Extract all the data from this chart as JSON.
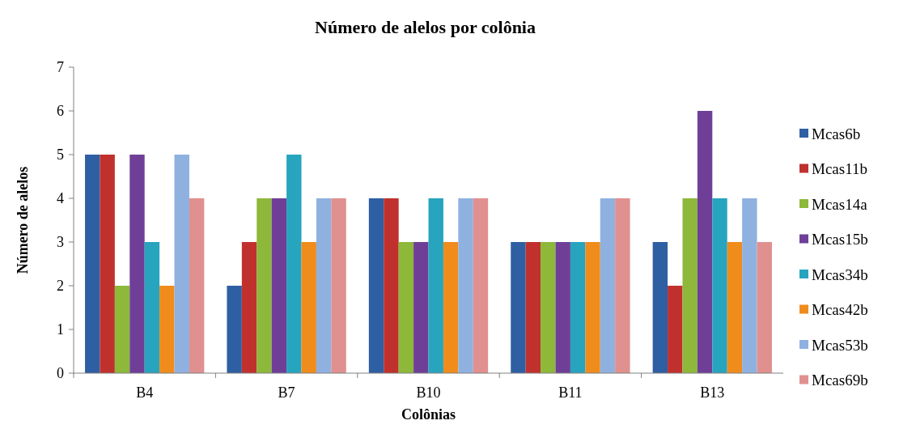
{
  "chart_data": {
    "type": "bar",
    "title": "Número de alelos por colônia",
    "xlabel": "Colônias",
    "ylabel": "Número de alelos",
    "categories": [
      "B4",
      "B7",
      "B10",
      "B11",
      "B13"
    ],
    "series": [
      {
        "name": "Mcas6b",
        "color": "#2e5fa3",
        "values": [
          5,
          2,
          4,
          3,
          3
        ]
      },
      {
        "name": "Mcas11b",
        "color": "#c0312e",
        "values": [
          5,
          3,
          4,
          3,
          2
        ]
      },
      {
        "name": "Mcas14a",
        "color": "#8db83a",
        "values": [
          2,
          4,
          3,
          3,
          4
        ]
      },
      {
        "name": "Mcas15b",
        "color": "#6f3f98",
        "values": [
          5,
          4,
          3,
          3,
          6
        ]
      },
      {
        "name": "Mcas34b",
        "color": "#27a4be",
        "values": [
          3,
          5,
          4,
          3,
          4
        ]
      },
      {
        "name": "Mcas42b",
        "color": "#f08c1c",
        "values": [
          2,
          3,
          3,
          3,
          3
        ]
      },
      {
        "name": "Mcas53b",
        "color": "#8fb1e0",
        "values": [
          5,
          4,
          4,
          4,
          4
        ]
      },
      {
        "name": "Mcas69b",
        "color": "#e0908f",
        "values": [
          4,
          4,
          4,
          4,
          3
        ]
      }
    ],
    "ylim": [
      0,
      7
    ],
    "yticks": [
      0,
      1,
      2,
      3,
      4,
      5,
      6,
      7
    ],
    "grid": false,
    "legend": "right"
  }
}
